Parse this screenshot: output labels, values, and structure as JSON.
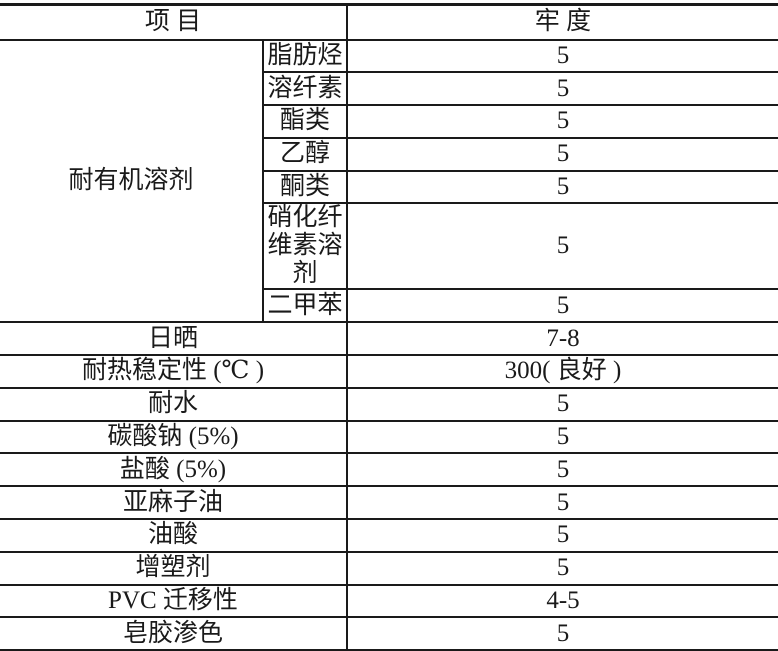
{
  "header": {
    "item": "项 目",
    "value": "牢 度"
  },
  "solvent_group": {
    "label": "耐有机溶剂",
    "rows": [
      {
        "name": "脂肪烃",
        "value": "5"
      },
      {
        "name": "溶纤素",
        "value": "5"
      },
      {
        "name": "酯类",
        "value": "5"
      },
      {
        "name": "乙醇",
        "value": "5"
      },
      {
        "name": "酮类",
        "value": "5"
      },
      {
        "name": "硝化纤维素溶剂",
        "value": "5"
      },
      {
        "name": "二甲苯",
        "value": "5"
      }
    ]
  },
  "rows": [
    {
      "name": "日晒",
      "value": "7-8"
    },
    {
      "name": "耐热稳定性 (℃ )",
      "value": "300( 良好 )"
    },
    {
      "name": "耐水",
      "value": "5"
    },
    {
      "name": "碳酸钠 (5%)",
      "value": "5"
    },
    {
      "name": "盐酸 (5%)",
      "value": "5"
    },
    {
      "name": "亚麻子油",
      "value": "5"
    },
    {
      "name": "油酸",
      "value": "5"
    },
    {
      "name": "增塑剂",
      "value": "5"
    },
    {
      "name": "PVC 迁移性",
      "value": "4-5"
    },
    {
      "name": "皂胶渗色",
      "value": "5"
    }
  ]
}
